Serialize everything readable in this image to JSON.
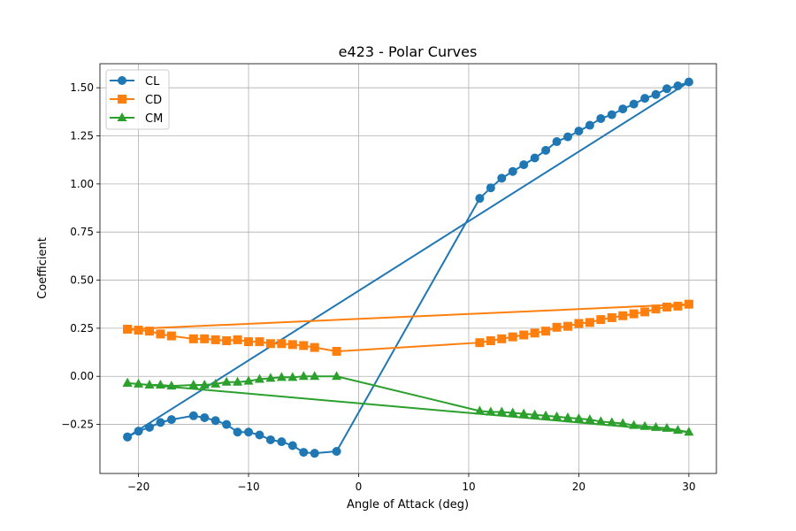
{
  "chart_data": {
    "type": "line",
    "title": "e423 - Polar Curves",
    "xlabel": "Angle of Attack (deg)",
    "ylabel": "Coefficient",
    "xlim": [
      -23.5,
      32.5
    ],
    "ylim": [
      -0.505,
      1.625
    ],
    "xticks": [
      -20,
      -10,
      0,
      10,
      20,
      30
    ],
    "xtick_labels": [
      "−20",
      "−10",
      "0",
      "10",
      "20",
      "30"
    ],
    "yticks": [
      -0.25,
      0.0,
      0.25,
      0.5,
      0.75,
      1.0,
      1.25,
      1.5
    ],
    "ytick_labels": [
      "−0.25",
      "0.00",
      "0.25",
      "0.50",
      "0.75",
      "1.00",
      "1.25",
      "1.50"
    ],
    "grid": true,
    "legend_position": "top-left",
    "x": [
      -21,
      -20,
      -19,
      -18,
      -17,
      -15,
      -14,
      -13,
      -12,
      -11,
      -10,
      -9,
      -8,
      -7,
      -6,
      -5,
      -4,
      -2,
      11,
      12,
      13,
      14,
      15,
      16,
      17,
      18,
      19,
      20,
      21,
      22,
      23,
      24,
      25,
      26,
      27,
      28,
      29,
      30,
      -21
    ],
    "series": [
      {
        "name": "CL",
        "color": "#1f77b4",
        "marker": "circle",
        "values": [
          -0.315,
          -0.285,
          -0.265,
          -0.24,
          -0.225,
          -0.205,
          -0.215,
          -0.23,
          -0.25,
          -0.29,
          -0.29,
          -0.305,
          -0.33,
          -0.34,
          -0.36,
          -0.395,
          -0.4,
          -0.39,
          0.925,
          0.98,
          1.03,
          1.065,
          1.1,
          1.135,
          1.175,
          1.22,
          1.245,
          1.275,
          1.305,
          1.34,
          1.36,
          1.39,
          1.415,
          1.445,
          1.465,
          1.495,
          1.51,
          1.53,
          -0.315
        ]
      },
      {
        "name": "CD",
        "color": "#ff7f0e",
        "marker": "square",
        "values": [
          0.245,
          0.24,
          0.235,
          0.22,
          0.21,
          0.195,
          0.195,
          0.19,
          0.185,
          0.19,
          0.18,
          0.18,
          0.17,
          0.17,
          0.165,
          0.16,
          0.15,
          0.13,
          0.175,
          0.185,
          0.195,
          0.205,
          0.215,
          0.225,
          0.235,
          0.255,
          0.26,
          0.275,
          0.28,
          0.295,
          0.305,
          0.315,
          0.325,
          0.335,
          0.35,
          0.36,
          0.365,
          0.375,
          0.245
        ]
      },
      {
        "name": "CM",
        "color": "#2ca02c",
        "marker": "triangle",
        "values": [
          -0.035,
          -0.04,
          -0.045,
          -0.045,
          -0.05,
          -0.045,
          -0.045,
          -0.04,
          -0.03,
          -0.03,
          -0.025,
          -0.015,
          -0.01,
          -0.005,
          -0.005,
          0.0,
          0.0,
          0.0,
          -0.18,
          -0.185,
          -0.185,
          -0.19,
          -0.195,
          -0.2,
          -0.205,
          -0.21,
          -0.215,
          -0.22,
          -0.225,
          -0.235,
          -0.24,
          -0.245,
          -0.255,
          -0.26,
          -0.265,
          -0.27,
          -0.28,
          -0.29,
          -0.035
        ]
      }
    ]
  }
}
